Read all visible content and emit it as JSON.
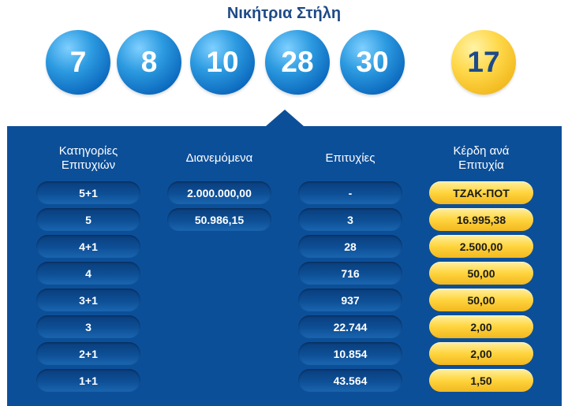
{
  "title": "Νικήτρια Στήλη",
  "winning_numbers": [
    "7",
    "8",
    "10",
    "28",
    "30"
  ],
  "joker_number": "17",
  "colors": {
    "panel": "#0c4f99",
    "ball_blue": "#1b7fd0",
    "ball_gold": "#ffd43d",
    "title": "#1e4a86"
  },
  "table": {
    "headers": [
      "Κατηγορίες Επιτυχιών",
      "Διανεμόμενα",
      "Επιτυχίες",
      "Κέρδη ανά Επιτυχία"
    ],
    "rows": [
      {
        "category": "5+1",
        "distributed": "2.000.000,00",
        "winners": "-",
        "prize": "ΤΖΑΚ-ΠΟΤ"
      },
      {
        "category": "5",
        "distributed": "50.986,15",
        "winners": "3",
        "prize": "16.995,38"
      },
      {
        "category": "4+1",
        "winners": "28",
        "prize": "2.500,00"
      },
      {
        "category": "4",
        "winners": "716",
        "prize": "50,00"
      },
      {
        "category": "3+1",
        "winners": "937",
        "prize": "50,00"
      },
      {
        "category": "3",
        "winners": "22.744",
        "prize": "2,00"
      },
      {
        "category": "2+1",
        "winners": "10.854",
        "prize": "2,00"
      },
      {
        "category": "1+1",
        "winners": "43.564",
        "prize": "1,50"
      }
    ]
  }
}
